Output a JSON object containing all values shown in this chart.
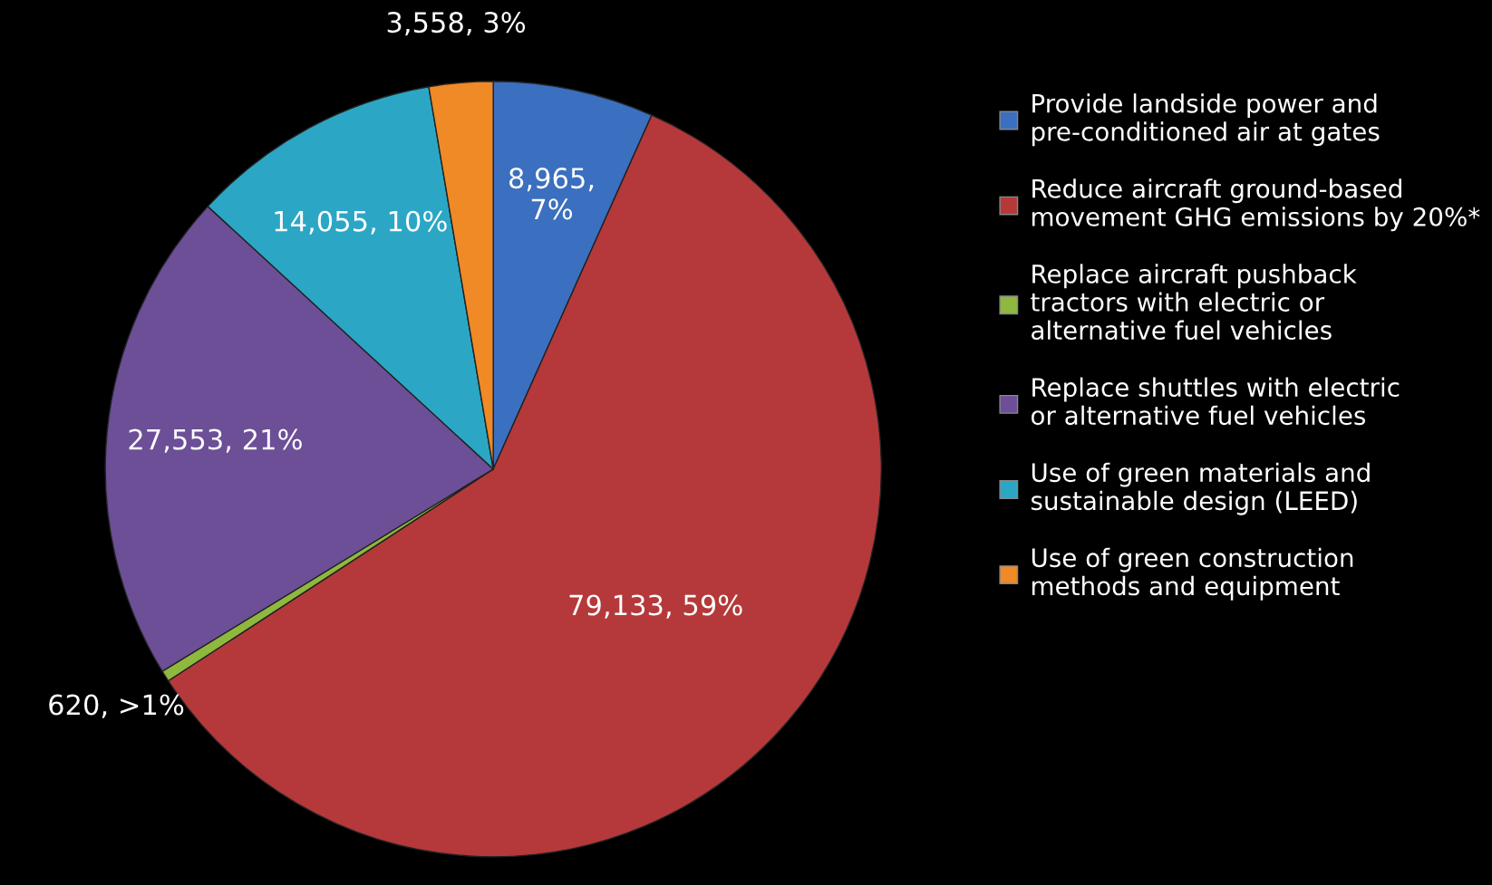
{
  "chart_data": {
    "type": "pie",
    "categories": [
      "Provide landside power and pre-conditioned air at gates",
      "Reduce aircraft ground-based movement GHG emissions by 20%*",
      "Replace aircraft pushback tractors with electric or alternative fuel vehicles",
      "Replace shuttles with electric or alternative fuel vehicles",
      "Use of green materials and sustainable design (LEED)",
      "Use of green construction methods and equipment"
    ],
    "values": [
      8965,
      79133,
      620,
      27553,
      14055,
      3558
    ],
    "colors": [
      "#3b6fbf",
      "#b5393a",
      "#8fb83e",
      "#6c4f97",
      "#2ba7c5",
      "#ef8a26"
    ],
    "value_labels": [
      "8,965, 7%",
      "79,133, 59%",
      "620, >1%",
      "27,553, 21%",
      "14,055, 10%",
      "3,558, 3%"
    ],
    "legend": "right"
  }
}
